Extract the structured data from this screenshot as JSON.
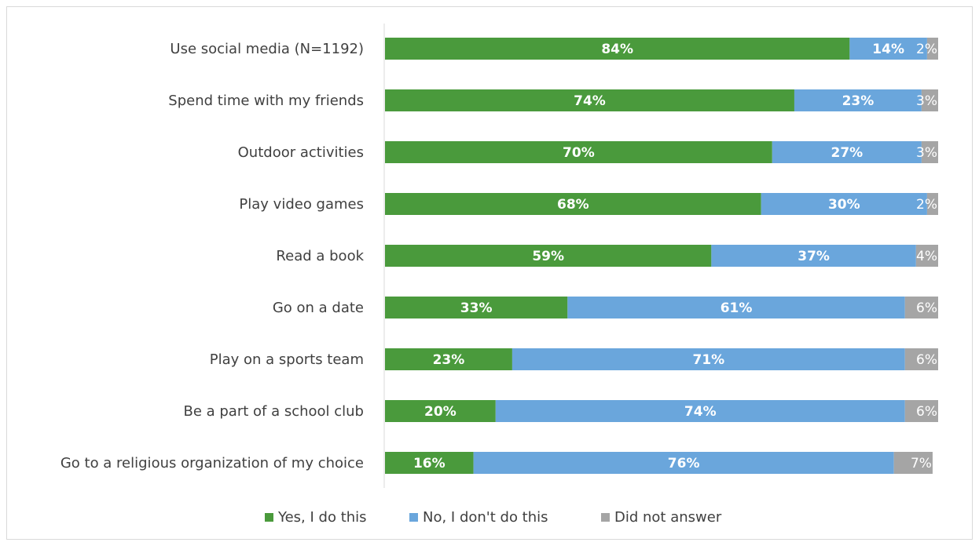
{
  "chart_data": {
    "type": "bar",
    "orientation": "horizontal",
    "stacked": true,
    "categories": [
      "Use social media (N=1192)",
      "Spend time with my friends",
      "Outdoor activities",
      "Play video games",
      "Read a book",
      "Go on a date",
      "Play on a sports team",
      "Be a part of a school club",
      "Go to a religious organization of my choice"
    ],
    "series": [
      {
        "name": "Yes, I do this",
        "color": "#4a9a3c",
        "values": [
          84,
          74,
          70,
          68,
          59,
          33,
          23,
          20,
          16
        ]
      },
      {
        "name": "No, I don't do this",
        "color": "#6aa6dc",
        "values": [
          14,
          23,
          27,
          30,
          37,
          61,
          71,
          74,
          76
        ]
      },
      {
        "name": "Did not answer",
        "color": "#a5a5a5",
        "values": [
          2,
          3,
          3,
          2,
          4,
          6,
          6,
          6,
          7
        ]
      }
    ],
    "value_suffix": "%",
    "title": "",
    "xlabel": "",
    "ylabel": "",
    "xlim": [
      0,
      100
    ],
    "grid": false,
    "legend_position": "bottom"
  }
}
